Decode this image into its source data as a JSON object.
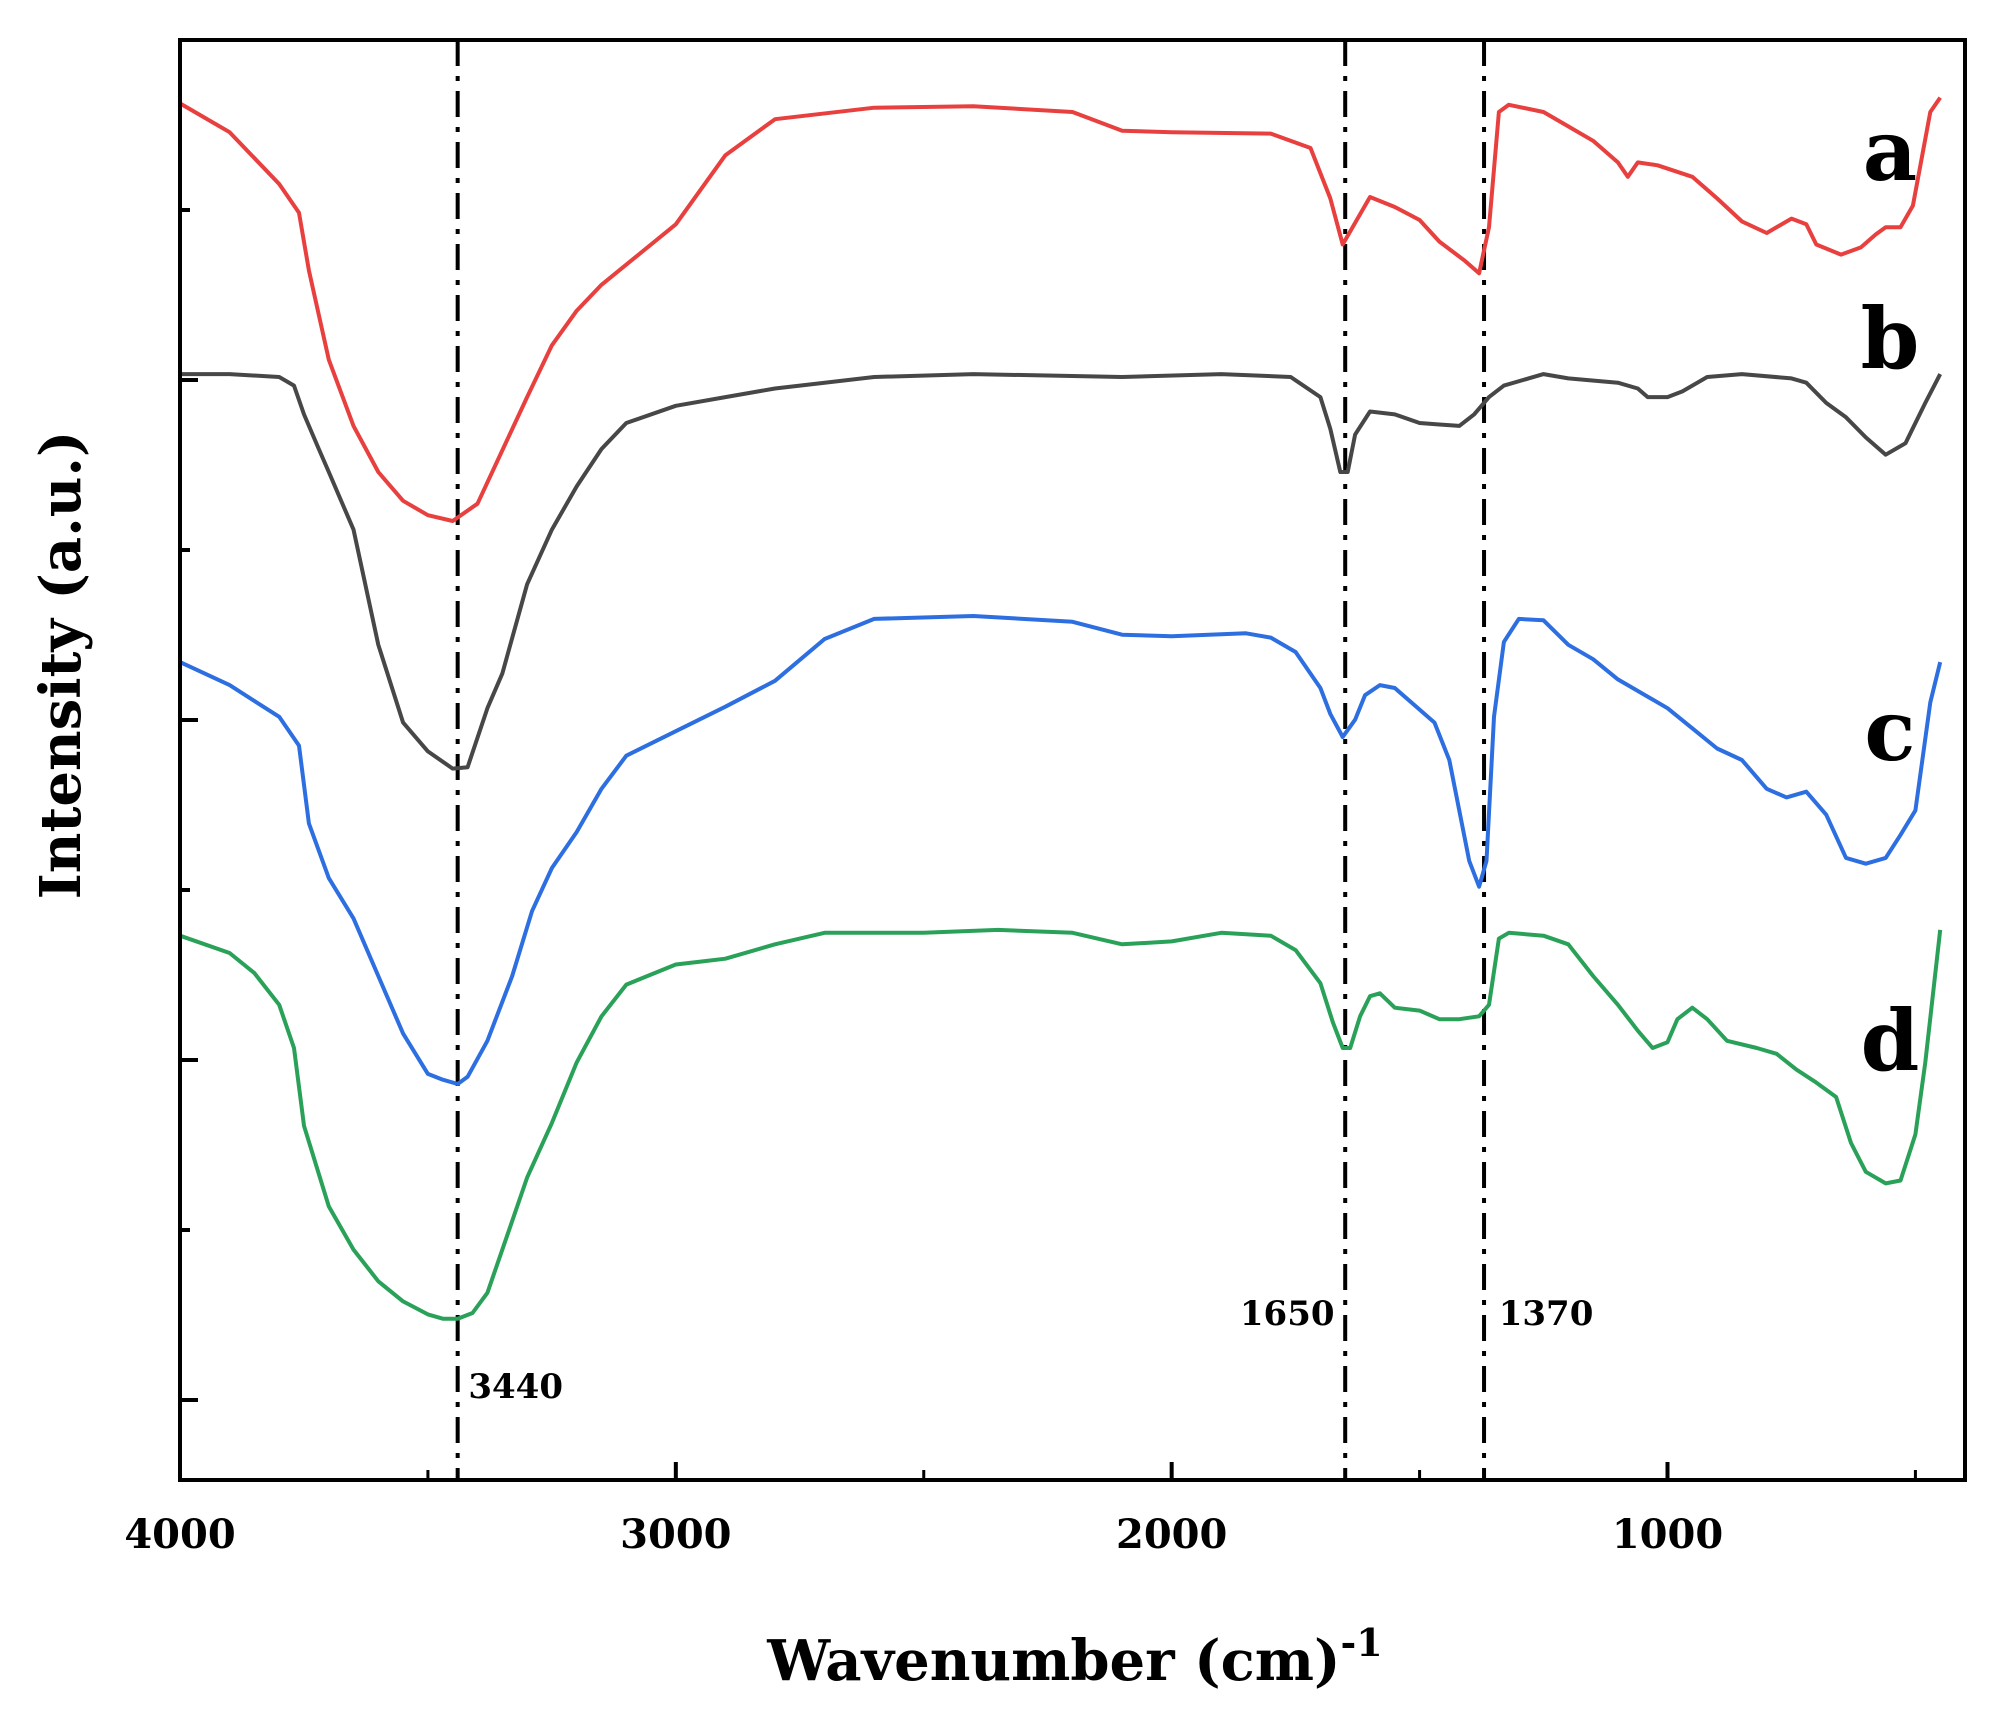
{
  "chart_data": {
    "type": "line",
    "title": "",
    "xlabel": "Wavenumber (cm)",
    "xlabel_superscript": "-1",
    "ylabel": "Intensity (a.u.)",
    "xlim": [
      4000,
      400
    ],
    "ylim": [
      0,
      1
    ],
    "x_reversed": true,
    "grid": false,
    "x_ticks": [
      "4000",
      "3000",
      "2000",
      "1000"
    ],
    "reference_lines": [
      {
        "name": "band-3440",
        "x": 3440,
        "label": "3440"
      },
      {
        "name": "band-1650",
        "x": 1650,
        "label": "1650"
      },
      {
        "name": "band-1370",
        "x": 1370,
        "label": "1370"
      }
    ],
    "series": [
      {
        "name": "a",
        "color": "#e8403f",
        "points": [
          [
            4000,
            0.956
          ],
          [
            3900,
            0.936
          ],
          [
            3800,
            0.9
          ],
          [
            3760,
            0.88
          ],
          [
            3740,
            0.84
          ],
          [
            3700,
            0.778
          ],
          [
            3650,
            0.732
          ],
          [
            3600,
            0.7
          ],
          [
            3550,
            0.68
          ],
          [
            3500,
            0.67
          ],
          [
            3450,
            0.666
          ],
          [
            3400,
            0.678
          ],
          [
            3350,
            0.715
          ],
          [
            3300,
            0.752
          ],
          [
            3250,
            0.788
          ],
          [
            3200,
            0.812
          ],
          [
            3150,
            0.83
          ],
          [
            3000,
            0.872
          ],
          [
            2900,
            0.92
          ],
          [
            2800,
            0.945
          ],
          [
            2600,
            0.953
          ],
          [
            2400,
            0.954
          ],
          [
            2200,
            0.95
          ],
          [
            2100,
            0.937
          ],
          [
            2000,
            0.936
          ],
          [
            1800,
            0.935
          ],
          [
            1720,
            0.925
          ],
          [
            1680,
            0.89
          ],
          [
            1655,
            0.858
          ],
          [
            1630,
            0.873
          ],
          [
            1600,
            0.891
          ],
          [
            1550,
            0.884
          ],
          [
            1500,
            0.875
          ],
          [
            1460,
            0.86
          ],
          [
            1410,
            0.847
          ],
          [
            1380,
            0.838
          ],
          [
            1360,
            0.87
          ],
          [
            1340,
            0.95
          ],
          [
            1320,
            0.955
          ],
          [
            1250,
            0.95
          ],
          [
            1200,
            0.94
          ],
          [
            1150,
            0.93
          ],
          [
            1100,
            0.915
          ],
          [
            1080,
            0.905
          ],
          [
            1060,
            0.915
          ],
          [
            1020,
            0.913
          ],
          [
            950,
            0.905
          ],
          [
            900,
            0.89
          ],
          [
            850,
            0.874
          ],
          [
            800,
            0.866
          ],
          [
            750,
            0.876
          ],
          [
            720,
            0.872
          ],
          [
            700,
            0.858
          ],
          [
            650,
            0.851
          ],
          [
            610,
            0.856
          ],
          [
            580,
            0.865
          ],
          [
            560,
            0.87
          ],
          [
            530,
            0.87
          ],
          [
            505,
            0.885
          ],
          [
            470,
            0.95
          ],
          [
            450,
            0.96
          ]
        ]
      },
      {
        "name": "b",
        "color": "#474747",
        "points": [
          [
            4000,
            0.768
          ],
          [
            3900,
            0.768
          ],
          [
            3800,
            0.766
          ],
          [
            3770,
            0.76
          ],
          [
            3750,
            0.74
          ],
          [
            3720,
            0.716
          ],
          [
            3700,
            0.7
          ],
          [
            3650,
            0.66
          ],
          [
            3600,
            0.58
          ],
          [
            3550,
            0.526
          ],
          [
            3500,
            0.506
          ],
          [
            3450,
            0.494
          ],
          [
            3420,
            0.495
          ],
          [
            3380,
            0.536
          ],
          [
            3350,
            0.56
          ],
          [
            3300,
            0.622
          ],
          [
            3250,
            0.66
          ],
          [
            3200,
            0.69
          ],
          [
            3150,
            0.716
          ],
          [
            3100,
            0.734
          ],
          [
            3000,
            0.746
          ],
          [
            2900,
            0.752
          ],
          [
            2800,
            0.758
          ],
          [
            2600,
            0.766
          ],
          [
            2400,
            0.768
          ],
          [
            2100,
            0.766
          ],
          [
            1900,
            0.768
          ],
          [
            1760,
            0.766
          ],
          [
            1700,
            0.752
          ],
          [
            1680,
            0.73
          ],
          [
            1660,
            0.7
          ],
          [
            1645,
            0.7
          ],
          [
            1630,
            0.726
          ],
          [
            1600,
            0.742
          ],
          [
            1550,
            0.74
          ],
          [
            1500,
            0.734
          ],
          [
            1460,
            0.733
          ],
          [
            1420,
            0.732
          ],
          [
            1390,
            0.74
          ],
          [
            1360,
            0.752
          ],
          [
            1330,
            0.76
          ],
          [
            1250,
            0.768
          ],
          [
            1200,
            0.765
          ],
          [
            1100,
            0.762
          ],
          [
            1060,
            0.758
          ],
          [
            1040,
            0.752
          ],
          [
            1000,
            0.752
          ],
          [
            970,
            0.756
          ],
          [
            920,
            0.766
          ],
          [
            850,
            0.768
          ],
          [
            750,
            0.765
          ],
          [
            720,
            0.762
          ],
          [
            680,
            0.748
          ],
          [
            640,
            0.738
          ],
          [
            600,
            0.724
          ],
          [
            560,
            0.712
          ],
          [
            520,
            0.72
          ],
          [
            480,
            0.748
          ],
          [
            450,
            0.768
          ]
        ]
      },
      {
        "name": "c",
        "color": "#2d6fe0",
        "points": [
          [
            4000,
            0.568
          ],
          [
            3900,
            0.552
          ],
          [
            3800,
            0.53
          ],
          [
            3760,
            0.51
          ],
          [
            3740,
            0.456
          ],
          [
            3700,
            0.418
          ],
          [
            3650,
            0.39
          ],
          [
            3600,
            0.35
          ],
          [
            3550,
            0.31
          ],
          [
            3500,
            0.282
          ],
          [
            3470,
            0.278
          ],
          [
            3440,
            0.275
          ],
          [
            3420,
            0.28
          ],
          [
            3380,
            0.305
          ],
          [
            3330,
            0.35
          ],
          [
            3290,
            0.395
          ],
          [
            3250,
            0.425
          ],
          [
            3200,
            0.45
          ],
          [
            3150,
            0.48
          ],
          [
            3100,
            0.503
          ],
          [
            3000,
            0.52
          ],
          [
            2900,
            0.537
          ],
          [
            2800,
            0.555
          ],
          [
            2700,
            0.584
          ],
          [
            2600,
            0.598
          ],
          [
            2400,
            0.6
          ],
          [
            2200,
            0.596
          ],
          [
            2100,
            0.587
          ],
          [
            2000,
            0.586
          ],
          [
            1850,
            0.588
          ],
          [
            1800,
            0.585
          ],
          [
            1750,
            0.575
          ],
          [
            1700,
            0.55
          ],
          [
            1680,
            0.532
          ],
          [
            1655,
            0.516
          ],
          [
            1630,
            0.528
          ],
          [
            1610,
            0.545
          ],
          [
            1580,
            0.552
          ],
          [
            1550,
            0.55
          ],
          [
            1510,
            0.538
          ],
          [
            1470,
            0.526
          ],
          [
            1440,
            0.5
          ],
          [
            1400,
            0.43
          ],
          [
            1380,
            0.412
          ],
          [
            1365,
            0.43
          ],
          [
            1350,
            0.53
          ],
          [
            1330,
            0.582
          ],
          [
            1300,
            0.598
          ],
          [
            1250,
            0.597
          ],
          [
            1200,
            0.58
          ],
          [
            1150,
            0.57
          ],
          [
            1100,
            0.556
          ],
          [
            1000,
            0.536
          ],
          [
            950,
            0.522
          ],
          [
            900,
            0.508
          ],
          [
            850,
            0.5
          ],
          [
            800,
            0.48
          ],
          [
            760,
            0.474
          ],
          [
            720,
            0.478
          ],
          [
            680,
            0.462
          ],
          [
            640,
            0.432
          ],
          [
            600,
            0.428
          ],
          [
            560,
            0.432
          ],
          [
            530,
            0.448
          ],
          [
            500,
            0.465
          ],
          [
            470,
            0.54
          ],
          [
            450,
            0.568
          ]
        ]
      },
      {
        "name": "d",
        "color": "#2aa158",
        "points": [
          [
            4000,
            0.378
          ],
          [
            3900,
            0.366
          ],
          [
            3850,
            0.352
          ],
          [
            3800,
            0.33
          ],
          [
            3770,
            0.3
          ],
          [
            3750,
            0.246
          ],
          [
            3700,
            0.19
          ],
          [
            3650,
            0.16
          ],
          [
            3600,
            0.138
          ],
          [
            3550,
            0.124
          ],
          [
            3500,
            0.115
          ],
          [
            3470,
            0.112
          ],
          [
            3440,
            0.112
          ],
          [
            3410,
            0.116
          ],
          [
            3380,
            0.13
          ],
          [
            3340,
            0.17
          ],
          [
            3300,
            0.21
          ],
          [
            3250,
            0.248
          ],
          [
            3200,
            0.29
          ],
          [
            3150,
            0.322
          ],
          [
            3100,
            0.344
          ],
          [
            3000,
            0.358
          ],
          [
            2950,
            0.36
          ],
          [
            2900,
            0.362
          ],
          [
            2800,
            0.372
          ],
          [
            2700,
            0.38
          ],
          [
            2500,
            0.38
          ],
          [
            2350,
            0.382
          ],
          [
            2200,
            0.38
          ],
          [
            2100,
            0.372
          ],
          [
            2000,
            0.374
          ],
          [
            1900,
            0.38
          ],
          [
            1800,
            0.378
          ],
          [
            1750,
            0.368
          ],
          [
            1700,
            0.345
          ],
          [
            1675,
            0.318
          ],
          [
            1655,
            0.3
          ],
          [
            1640,
            0.3
          ],
          [
            1620,
            0.322
          ],
          [
            1600,
            0.336
          ],
          [
            1580,
            0.338
          ],
          [
            1550,
            0.328
          ],
          [
            1500,
            0.326
          ],
          [
            1460,
            0.32
          ],
          [
            1420,
            0.32
          ],
          [
            1380,
            0.322
          ],
          [
            1360,
            0.33
          ],
          [
            1340,
            0.376
          ],
          [
            1320,
            0.38
          ],
          [
            1250,
            0.378
          ],
          [
            1200,
            0.372
          ],
          [
            1150,
            0.35
          ],
          [
            1100,
            0.33
          ],
          [
            1060,
            0.312
          ],
          [
            1030,
            0.3
          ],
          [
            1000,
            0.304
          ],
          [
            980,
            0.32
          ],
          [
            950,
            0.328
          ],
          [
            920,
            0.32
          ],
          [
            880,
            0.305
          ],
          [
            820,
            0.3
          ],
          [
            780,
            0.296
          ],
          [
            740,
            0.285
          ],
          [
            700,
            0.276
          ],
          [
            660,
            0.266
          ],
          [
            630,
            0.234
          ],
          [
            600,
            0.214
          ],
          [
            560,
            0.206
          ],
          [
            530,
            0.208
          ],
          [
            500,
            0.24
          ],
          [
            480,
            0.29
          ],
          [
            450,
            0.382
          ]
        ]
      }
    ]
  }
}
